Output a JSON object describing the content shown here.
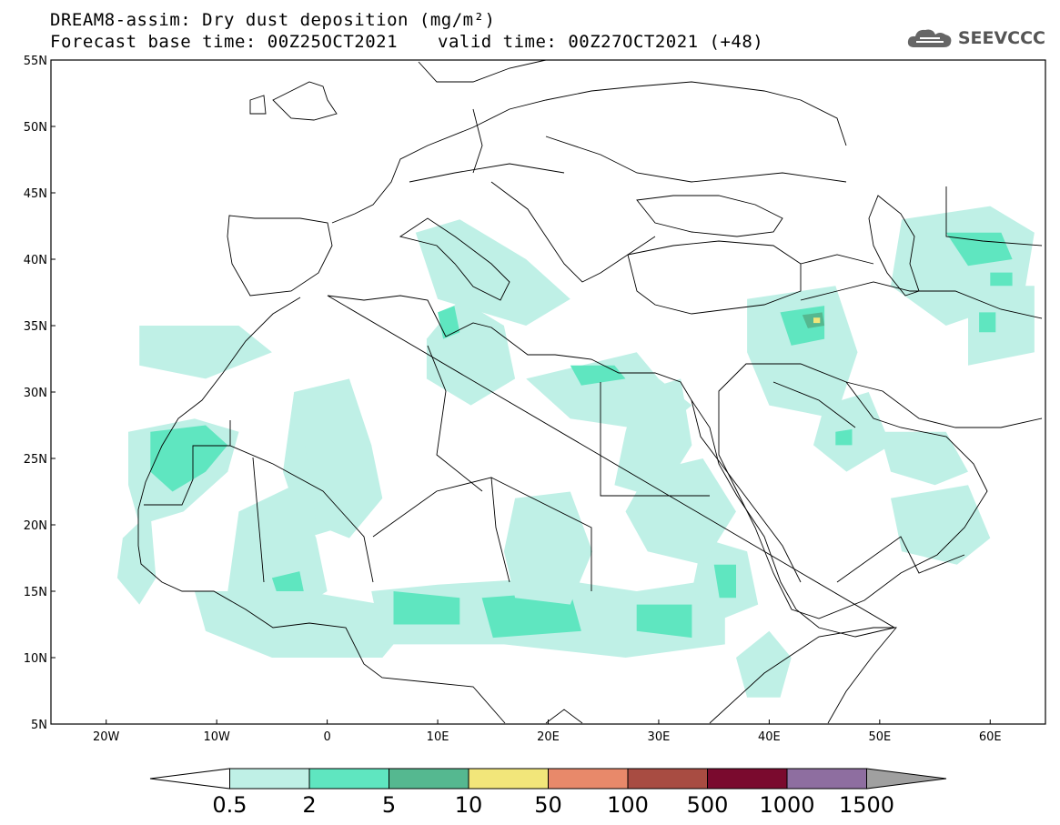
{
  "header": {
    "title": "DREAM8-assim: Dry dust deposition (mg/m²)",
    "base_time": "Forecast base time: 00Z25OCT2021",
    "valid_time": "valid time: 00Z27OCT2021 (+48)",
    "logo_text": "SEEVCCC",
    "logo_icon": "cloud-logo-icon"
  },
  "map": {
    "lon_range": [
      -25,
      65
    ],
    "lat_range": [
      5,
      55
    ],
    "lat_ticks": [
      {
        "value": 55,
        "label": "55N"
      },
      {
        "value": 50,
        "label": "50N"
      },
      {
        "value": 45,
        "label": "45N"
      },
      {
        "value": 40,
        "label": "40N"
      },
      {
        "value": 35,
        "label": "35N"
      },
      {
        "value": 30,
        "label": "30N"
      },
      {
        "value": 25,
        "label": "25N"
      },
      {
        "value": 20,
        "label": "20N"
      },
      {
        "value": 15,
        "label": "15N"
      },
      {
        "value": 10,
        "label": "10N"
      },
      {
        "value": 5,
        "label": "5N"
      }
    ],
    "lon_ticks": [
      {
        "value": -20,
        "label": "20W"
      },
      {
        "value": -10,
        "label": "10W"
      },
      {
        "value": 0,
        "label": "0"
      },
      {
        "value": 10,
        "label": "10E"
      },
      {
        "value": 20,
        "label": "20E"
      },
      {
        "value": 30,
        "label": "30E"
      },
      {
        "value": 40,
        "label": "40E"
      },
      {
        "value": 50,
        "label": "50E"
      },
      {
        "value": 60,
        "label": "60E"
      }
    ],
    "dust_regions": [
      {
        "level": 1,
        "pts": [
          [
            -18,
            27
          ],
          [
            -12,
            28
          ],
          [
            -8,
            27
          ],
          [
            -9,
            24
          ],
          [
            -13,
            21
          ],
          [
            -17,
            20
          ],
          [
            -18,
            23
          ]
        ]
      },
      {
        "level": 2,
        "pts": [
          [
            -16,
            27
          ],
          [
            -11,
            27.5
          ],
          [
            -9,
            26
          ],
          [
            -11,
            24
          ],
          [
            -14,
            22.5
          ],
          [
            -16,
            24
          ]
        ]
      },
      {
        "level": 1,
        "pts": [
          [
            -18.5,
            19
          ],
          [
            -16,
            21
          ],
          [
            -15.5,
            16
          ],
          [
            -17,
            14
          ],
          [
            -19,
            16
          ]
        ]
      },
      {
        "level": 1,
        "pts": [
          [
            -8,
            21
          ],
          [
            -3,
            23
          ],
          [
            -1,
            19
          ],
          [
            0,
            15
          ],
          [
            -4,
            13
          ],
          [
            -9,
            15
          ]
        ]
      },
      {
        "level": 2,
        "pts": [
          [
            -5,
            16
          ],
          [
            -2.5,
            16.5
          ],
          [
            -2,
            14.5
          ],
          [
            -4,
            13.5
          ]
        ]
      },
      {
        "level": 1,
        "pts": [
          [
            -12,
            15
          ],
          [
            -2,
            15
          ],
          [
            5,
            14
          ],
          [
            8,
            13
          ],
          [
            5,
            10
          ],
          [
            -5,
            10
          ],
          [
            -11,
            12
          ]
        ]
      },
      {
        "level": 1,
        "pts": [
          [
            4,
            15
          ],
          [
            10,
            15.5
          ],
          [
            20,
            16
          ],
          [
            28,
            15
          ],
          [
            36,
            16
          ],
          [
            36,
            11
          ],
          [
            27,
            10
          ],
          [
            16,
            11
          ],
          [
            5,
            11
          ]
        ]
      },
      {
        "level": 2,
        "pts": [
          [
            6,
            15
          ],
          [
            12,
            14.5
          ],
          [
            12,
            12.5
          ],
          [
            6,
            12.5
          ]
        ]
      },
      {
        "level": 2,
        "pts": [
          [
            14,
            14.5
          ],
          [
            22,
            15
          ],
          [
            23,
            12
          ],
          [
            15,
            11.5
          ]
        ]
      },
      {
        "level": 2,
        "pts": [
          [
            28,
            14
          ],
          [
            33,
            14
          ],
          [
            33,
            11.5
          ],
          [
            28,
            12
          ]
        ]
      },
      {
        "level": 1,
        "pts": [
          [
            34,
            19
          ],
          [
            38,
            18
          ],
          [
            39,
            14
          ],
          [
            36,
            13
          ],
          [
            33,
            15
          ]
        ]
      },
      {
        "level": 2,
        "pts": [
          [
            35,
            17
          ],
          [
            37,
            17
          ],
          [
            37,
            14.5
          ],
          [
            35.5,
            14.5
          ]
        ]
      },
      {
        "level": 1,
        "pts": [
          [
            29,
            24
          ],
          [
            34,
            25
          ],
          [
            37,
            21
          ],
          [
            34,
            17
          ],
          [
            29,
            18
          ],
          [
            27,
            21
          ]
        ]
      },
      {
        "level": 1,
        "pts": [
          [
            17,
            22
          ],
          [
            22,
            22.5
          ],
          [
            24,
            18
          ],
          [
            22,
            14
          ],
          [
            17,
            14.5
          ],
          [
            16,
            18
          ]
        ]
      },
      {
        "level": 1,
        "pts": [
          [
            -3,
            30
          ],
          [
            2,
            31
          ],
          [
            4,
            26
          ],
          [
            2,
            20
          ],
          [
            -2,
            19
          ],
          [
            -4,
            24
          ]
        ]
      },
      {
        "level": 1,
        "pts": [
          [
            -2,
            26
          ],
          [
            4,
            26
          ],
          [
            5,
            22
          ],
          [
            2,
            19
          ],
          [
            -1,
            20
          ]
        ]
      },
      {
        "level": 1,
        "pts": [
          [
            9,
            34
          ],
          [
            12,
            37
          ],
          [
            16,
            35
          ],
          [
            17,
            31
          ],
          [
            13,
            29
          ],
          [
            9,
            31
          ]
        ]
      },
      {
        "level": 2,
        "pts": [
          [
            10,
            36
          ],
          [
            11.5,
            36.5
          ],
          [
            12,
            34.5
          ],
          [
            10.5,
            34
          ]
        ]
      },
      {
        "level": 1,
        "pts": [
          [
            18,
            31
          ],
          [
            28,
            33
          ],
          [
            30,
            31
          ],
          [
            33,
            29
          ],
          [
            30,
            27
          ],
          [
            22,
            28
          ]
        ]
      },
      {
        "level": 2,
        "pts": [
          [
            22,
            32
          ],
          [
            26,
            32
          ],
          [
            27,
            31
          ],
          [
            23,
            30.5
          ]
        ]
      },
      {
        "level": 1,
        "pts": [
          [
            28,
            30
          ],
          [
            32,
            31
          ],
          [
            33,
            26
          ],
          [
            30,
            22
          ],
          [
            26,
            23
          ],
          [
            27,
            27
          ]
        ]
      },
      {
        "level": 1,
        "pts": [
          [
            8,
            42
          ],
          [
            12,
            43
          ],
          [
            18,
            40
          ],
          [
            22,
            37
          ],
          [
            18,
            35
          ],
          [
            10,
            37
          ]
        ]
      },
      {
        "level": 1,
        "pts": [
          [
            -17,
            35
          ],
          [
            -8,
            35
          ],
          [
            -5,
            33
          ],
          [
            -11,
            31
          ],
          [
            -17,
            32
          ]
        ]
      },
      {
        "level": 1,
        "pts": [
          [
            38,
            37
          ],
          [
            46,
            38
          ],
          [
            48,
            33
          ],
          [
            46,
            28
          ],
          [
            40,
            29
          ],
          [
            38,
            33
          ]
        ]
      },
      {
        "level": 2,
        "pts": [
          [
            41,
            36
          ],
          [
            45,
            36.5
          ],
          [
            45,
            34
          ],
          [
            42,
            33.5
          ]
        ]
      },
      {
        "level": 3,
        "pts": [
          [
            43,
            35.8
          ],
          [
            44.8,
            36
          ],
          [
            45,
            35
          ],
          [
            43.5,
            34.8
          ]
        ]
      },
      {
        "level": 4,
        "pts": [
          [
            44,
            35.6
          ],
          [
            44.6,
            35.6
          ],
          [
            44.6,
            35.2
          ],
          [
            44,
            35.2
          ]
        ]
      },
      {
        "level": 1,
        "pts": [
          [
            45,
            29
          ],
          [
            49,
            30
          ],
          [
            51,
            26
          ],
          [
            47,
            24
          ],
          [
            44,
            26
          ]
        ]
      },
      {
        "level": 2,
        "pts": [
          [
            46,
            27
          ],
          [
            47.5,
            27.2
          ],
          [
            47.5,
            26
          ],
          [
            46,
            26
          ]
        ]
      },
      {
        "level": 1,
        "pts": [
          [
            50,
            27
          ],
          [
            56,
            27
          ],
          [
            58,
            24
          ],
          [
            55,
            23
          ],
          [
            51,
            24
          ]
        ]
      },
      {
        "level": 1,
        "pts": [
          [
            51,
            22
          ],
          [
            58,
            23
          ],
          [
            60,
            19
          ],
          [
            57,
            17
          ],
          [
            52,
            18
          ]
        ]
      },
      {
        "level": 1,
        "pts": [
          [
            52,
            43
          ],
          [
            60,
            44
          ],
          [
            64,
            42
          ],
          [
            63,
            37
          ],
          [
            56,
            35
          ],
          [
            51,
            38
          ]
        ]
      },
      {
        "level": 2,
        "pts": [
          [
            56,
            42
          ],
          [
            61,
            42
          ],
          [
            62,
            40
          ],
          [
            58,
            39.5
          ]
        ]
      },
      {
        "level": 2,
        "pts": [
          [
            60,
            39
          ],
          [
            62,
            39
          ],
          [
            62,
            37
          ],
          [
            60,
            37
          ]
        ]
      },
      {
        "level": 1,
        "pts": [
          [
            58,
            38
          ],
          [
            64,
            38
          ],
          [
            64,
            33
          ],
          [
            58,
            32
          ]
        ]
      },
      {
        "level": 2,
        "pts": [
          [
            59,
            36
          ],
          [
            60.5,
            36
          ],
          [
            60.5,
            34.5
          ],
          [
            59,
            34.5
          ]
        ]
      },
      {
        "level": 1,
        "pts": [
          [
            37,
            10
          ],
          [
            40,
            12
          ],
          [
            42,
            10
          ],
          [
            41,
            7
          ],
          [
            38,
            7
          ]
        ]
      }
    ]
  },
  "colorbar": {
    "labels": [
      "0.5",
      "2",
      "5",
      "10",
      "50",
      "100",
      "500",
      "1000",
      "1500"
    ],
    "colors": [
      "#ffffff",
      "#bff0e6",
      "#5fe6c0",
      "#55b890",
      "#f2e67a",
      "#e8896a",
      "#a84c42",
      "#7a0a2e",
      "#8e6ea0",
      "#a0a0a0"
    ]
  }
}
